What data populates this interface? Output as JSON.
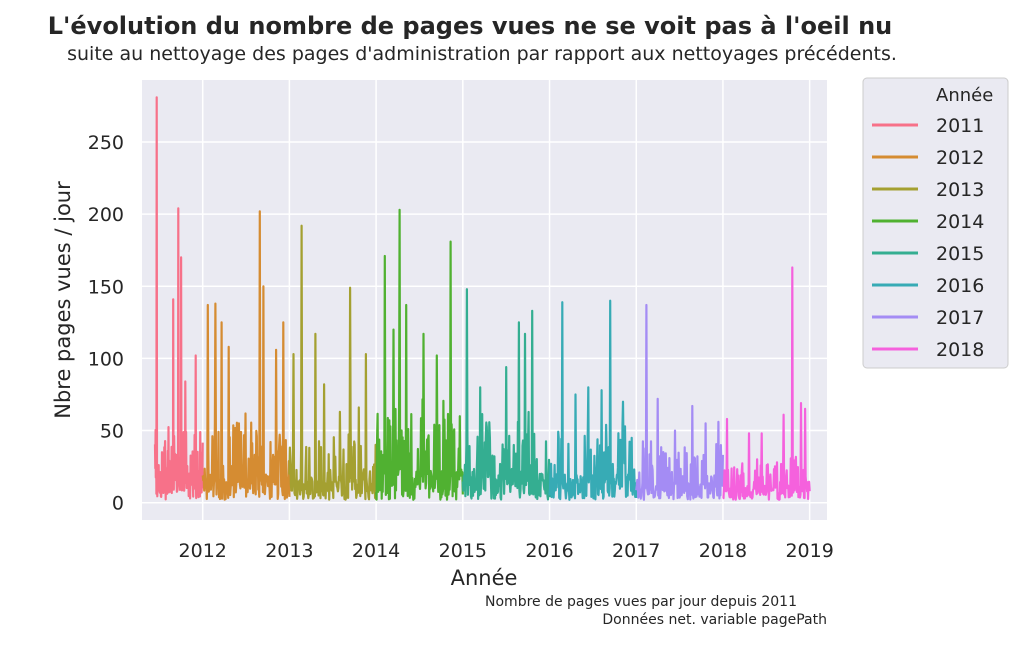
{
  "chart_data": {
    "type": "line",
    "title": "L'évolution du nombre de pages vues ne se voit pas à l'oeil nu",
    "subtitle": "suite au nettoyage des pages d'administration par rapport aux nettoyages précédents.",
    "xlabel": "Année",
    "ylabel": "Nbre pages vues / jour",
    "xticks": [
      "2012",
      "2013",
      "2014",
      "2015",
      "2016",
      "2017",
      "2018",
      "2019"
    ],
    "yticks": [
      0,
      50,
      100,
      150,
      200,
      250
    ],
    "xlim": [
      2011.3,
      2019.2
    ],
    "ylim": [
      -12,
      293
    ],
    "grid": true,
    "legend": {
      "title": "Année",
      "position": "right-outside"
    },
    "caption": [
      "Nombre de pages vues par jour depuis 2011",
      "Données net. variable pagePath"
    ],
    "series": [
      {
        "name": "2011",
        "color": "#f77189",
        "x_range": [
          2011.45,
          2012.0
        ],
        "base": 22,
        "amp": 38,
        "peaks": [
          [
            2011.47,
            281
          ],
          [
            2011.53,
            35
          ],
          [
            2011.6,
            36
          ],
          [
            2011.66,
            141
          ],
          [
            2011.72,
            204
          ],
          [
            2011.75,
            170
          ],
          [
            2011.8,
            84
          ],
          [
            2011.92,
            102
          ]
        ]
      },
      {
        "name": "2012",
        "color": "#d58c32",
        "x_range": [
          2012.0,
          2013.0
        ],
        "base": 18,
        "amp": 45,
        "peaks": [
          [
            2012.06,
            137
          ],
          [
            2012.15,
            138
          ],
          [
            2012.22,
            125
          ],
          [
            2012.3,
            108
          ],
          [
            2012.42,
            55
          ],
          [
            2012.66,
            202
          ],
          [
            2012.7,
            150
          ],
          [
            2012.85,
            106
          ],
          [
            2012.93,
            125
          ]
        ]
      },
      {
        "name": "2013",
        "color": "#a4a031",
        "x_range": [
          2013.0,
          2014.0
        ],
        "base": 16,
        "amp": 40,
        "peaks": [
          [
            2013.05,
            103
          ],
          [
            2013.14,
            192
          ],
          [
            2013.3,
            117
          ],
          [
            2013.4,
            82
          ],
          [
            2013.58,
            63
          ],
          [
            2013.7,
            149
          ],
          [
            2013.8,
            66
          ],
          [
            2013.88,
            103
          ]
        ]
      },
      {
        "name": "2014",
        "color": "#50b131",
        "x_range": [
          2014.0,
          2015.0
        ],
        "base": 22,
        "amp": 50,
        "peaks": [
          [
            2014.1,
            171
          ],
          [
            2014.2,
            120
          ],
          [
            2014.27,
            203
          ],
          [
            2014.35,
            137
          ],
          [
            2014.55,
            117
          ],
          [
            2014.7,
            102
          ],
          [
            2014.86,
            181
          ]
        ]
      },
      {
        "name": "2015",
        "color": "#34ae91",
        "x_range": [
          2015.0,
          2016.0
        ],
        "base": 20,
        "amp": 42,
        "peaks": [
          [
            2015.05,
            148
          ],
          [
            2015.2,
            80
          ],
          [
            2015.5,
            94
          ],
          [
            2015.65,
            125
          ],
          [
            2015.72,
            117
          ],
          [
            2015.8,
            133
          ]
        ]
      },
      {
        "name": "2016",
        "color": "#37abb5",
        "x_range": [
          2016.0,
          2017.0
        ],
        "base": 18,
        "amp": 38,
        "peaks": [
          [
            2016.15,
            139
          ],
          [
            2016.3,
            75
          ],
          [
            2016.45,
            80
          ],
          [
            2016.6,
            78
          ],
          [
            2016.7,
            140
          ],
          [
            2016.85,
            70
          ]
        ]
      },
      {
        "name": "2017",
        "color": "#a48cf4",
        "x_range": [
          2017.0,
          2018.0
        ],
        "base": 12,
        "amp": 30,
        "peaks": [
          [
            2017.12,
            137
          ],
          [
            2017.25,
            72
          ],
          [
            2017.45,
            50
          ],
          [
            2017.65,
            67
          ],
          [
            2017.8,
            55
          ],
          [
            2017.95,
            56
          ]
        ]
      },
      {
        "name": "2018",
        "color": "#f561dd",
        "x_range": [
          2018.0,
          2019.0
        ],
        "base": 10,
        "amp": 22,
        "peaks": [
          [
            2018.05,
            58
          ],
          [
            2018.3,
            48
          ],
          [
            2018.45,
            48
          ],
          [
            2018.7,
            61
          ],
          [
            2018.8,
            163
          ],
          [
            2018.9,
            69
          ],
          [
            2018.95,
            65
          ]
        ]
      }
    ]
  }
}
